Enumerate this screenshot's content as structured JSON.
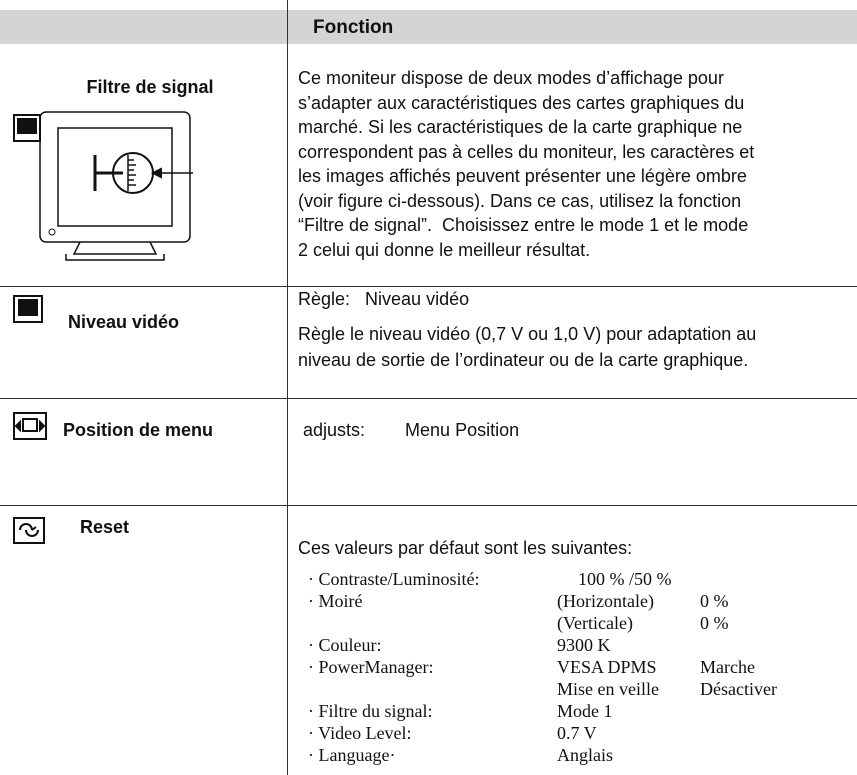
{
  "header": {
    "title": "Fonction"
  },
  "rows": [
    {
      "label": "Filtre de signal",
      "lines": [
        "Ce moniteur dispose de deux modes d’affichage pour",
        "s’adapter aux caractéristiques des cartes graphiques du",
        "marché. Si les caractéristiques de la carte graphique ne",
        "correspondent pas à celles du moniteur, les caractères et",
        "les images affichés peuvent présenter une légère ombre",
        "(voir figure ci-dessous). Dans ce cas, utilisez la fonction",
        "“Filtre de signal”.  Choisissez entre le mode 1 et le mode",
        "2 celui qui donne le meilleur résultat."
      ]
    },
    {
      "label": "Niveau vidéo",
      "lines": [
        "Règle:   Niveau vidéo",
        "Règle le niveau vidéo (0,7 V ou 1,0 V) pour adaptation au",
        "niveau de sortie de l’ordinateur ou de la carte graphique."
      ]
    },
    {
      "label": "Position de menu",
      "lines": [
        "adjusts:        Menu Position"
      ]
    },
    {
      "label": "Reset",
      "lines": [
        "Ces valeurs par défaut sont les suivantes:"
      ],
      "items": [
        {
          "label": "· Contraste/Luminosité:",
          "rows": [
            [
              "100 % /50 %"
            ]
          ]
        },
        {
          "label": "· Moiré",
          "rows": [
            [
              "(Horizontale)",
              "0 %"
            ],
            [
              "(Verticale)",
              "0 %"
            ]
          ]
        },
        {
          "label": "· Couleur:",
          "rows": [
            [
              "9300 K"
            ]
          ]
        },
        {
          "label": "· PowerManager:",
          "rows": [
            [
              "VESA DPMS",
              "Marche"
            ],
            [
              "Mise en veille",
              "Désactiver"
            ]
          ]
        },
        {
          "label": "· Filtre du signal:",
          "rows": [
            [
              "Mode 1"
            ]
          ]
        },
        {
          "label": "· Video Level:",
          "rows": [
            [
              "0.7 V"
            ]
          ]
        },
        {
          "label": "· Language·",
          "rows": [
            [
              "Anglais"
            ]
          ]
        }
      ]
    }
  ]
}
